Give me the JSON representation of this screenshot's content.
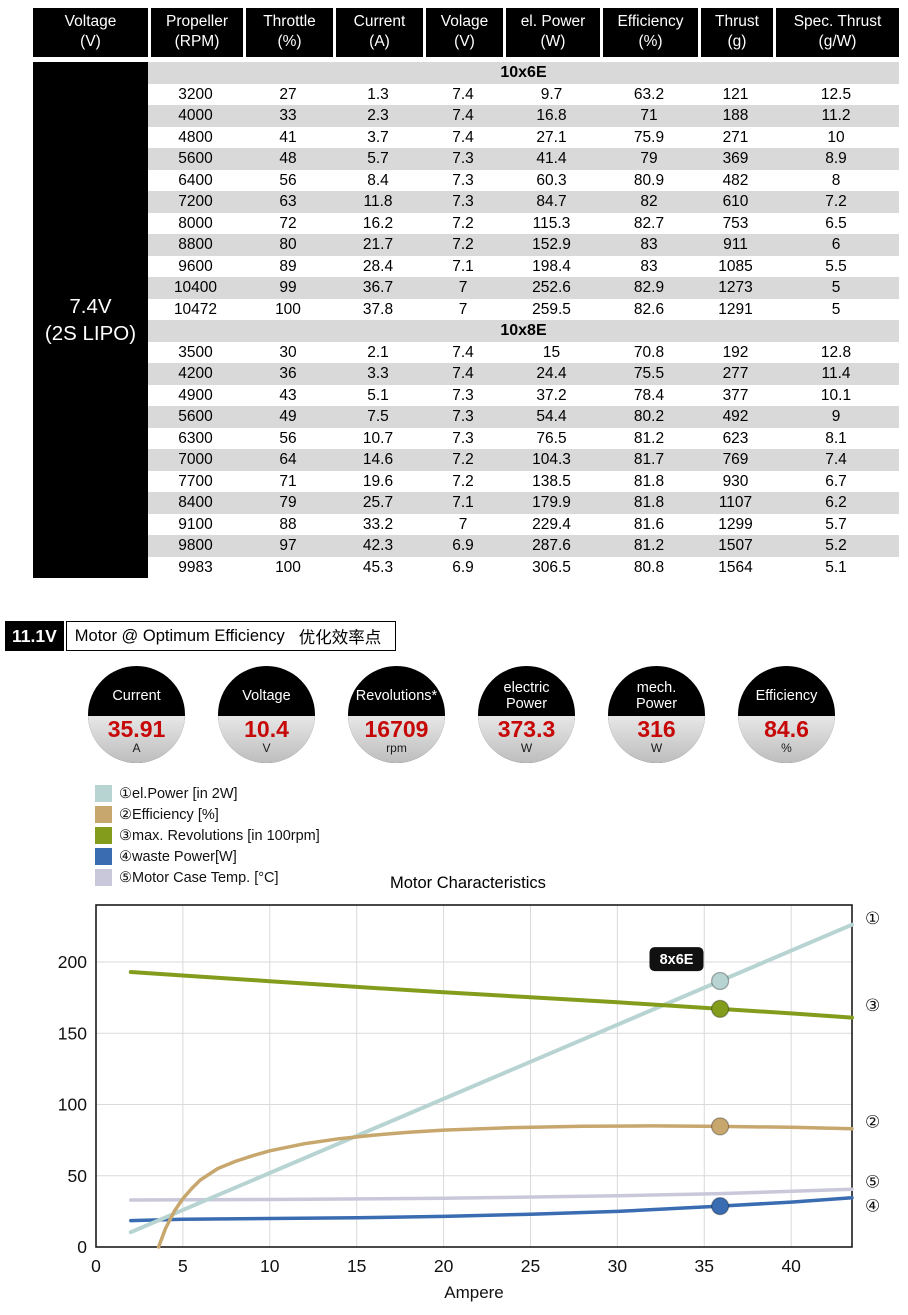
{
  "table": {
    "headers": [
      {
        "l1": "Voltage",
        "l2": "(V)"
      },
      {
        "l1": "Propeller",
        "l2": "(RPM)"
      },
      {
        "l1": "Throttle",
        "l2": "(%)"
      },
      {
        "l1": "Current",
        "l2": "(A)"
      },
      {
        "l1": "Volage",
        "l2": "(V)"
      },
      {
        "l1": "el. Power",
        "l2": "(W)"
      },
      {
        "l1": "Efficiency",
        "l2": "(%)"
      },
      {
        "l1": "Thrust",
        "l2": "(g)"
      },
      {
        "l1": "Spec. Thrust",
        "l2": "(g/W)"
      }
    ],
    "voltage_label": {
      "l1": "7.4V",
      "l2": "(2S LIPO)"
    },
    "sections": [
      {
        "name": "10x6E",
        "rows": [
          [
            "3200",
            "27",
            "1.3",
            "7.4",
            "9.7",
            "63.2",
            "121",
            "12.5"
          ],
          [
            "4000",
            "33",
            "2.3",
            "7.4",
            "16.8",
            "71",
            "188",
            "11.2"
          ],
          [
            "4800",
            "41",
            "3.7",
            "7.4",
            "27.1",
            "75.9",
            "271",
            "10"
          ],
          [
            "5600",
            "48",
            "5.7",
            "7.3",
            "41.4",
            "79",
            "369",
            "8.9"
          ],
          [
            "6400",
            "56",
            "8.4",
            "7.3",
            "60.3",
            "80.9",
            "482",
            "8"
          ],
          [
            "7200",
            "63",
            "11.8",
            "7.3",
            "84.7",
            "82",
            "610",
            "7.2"
          ],
          [
            "8000",
            "72",
            "16.2",
            "7.2",
            "115.3",
            "82.7",
            "753",
            "6.5"
          ],
          [
            "8800",
            "80",
            "21.7",
            "7.2",
            "152.9",
            "83",
            "911",
            "6"
          ],
          [
            "9600",
            "89",
            "28.4",
            "7.1",
            "198.4",
            "83",
            "1085",
            "5.5"
          ],
          [
            "10400",
            "99",
            "36.7",
            "7",
            "252.6",
            "82.9",
            "1273",
            "5"
          ],
          [
            "10472",
            "100",
            "37.8",
            "7",
            "259.5",
            "82.6",
            "1291",
            "5"
          ]
        ]
      },
      {
        "name": "10x8E",
        "rows": [
          [
            "3500",
            "30",
            "2.1",
            "7.4",
            "15",
            "70.8",
            "192",
            "12.8"
          ],
          [
            "4200",
            "36",
            "3.3",
            "7.4",
            "24.4",
            "75.5",
            "277",
            "11.4"
          ],
          [
            "4900",
            "43",
            "5.1",
            "7.3",
            "37.2",
            "78.4",
            "377",
            "10.1"
          ],
          [
            "5600",
            "49",
            "7.5",
            "7.3",
            "54.4",
            "80.2",
            "492",
            "9"
          ],
          [
            "6300",
            "56",
            "10.7",
            "7.3",
            "76.5",
            "81.2",
            "623",
            "8.1"
          ],
          [
            "7000",
            "64",
            "14.6",
            "7.2",
            "104.3",
            "81.7",
            "769",
            "7.4"
          ],
          [
            "7700",
            "71",
            "19.6",
            "7.2",
            "138.5",
            "81.8",
            "930",
            "6.7"
          ],
          [
            "8400",
            "79",
            "25.7",
            "7.1",
            "179.9",
            "81.8",
            "1107",
            "6.2"
          ],
          [
            "9100",
            "88",
            "33.2",
            "7",
            "229.4",
            "81.6",
            "1299",
            "5.7"
          ],
          [
            "9800",
            "97",
            "42.3",
            "6.9",
            "287.6",
            "81.2",
            "1507",
            "5.2"
          ],
          [
            "9983",
            "100",
            "45.3",
            "6.9",
            "306.5",
            "80.8",
            "1564",
            "5.1"
          ]
        ]
      }
    ]
  },
  "optimum": {
    "voltage_tag": "11.1V",
    "title": "Motor @ Optimum Efficiency",
    "title_cn": "优化效率点",
    "badges": [
      {
        "label": [
          "Current"
        ],
        "value": "35.91",
        "unit": "A"
      },
      {
        "label": [
          "Voltage"
        ],
        "value": "10.4",
        "unit": "V"
      },
      {
        "label": [
          "Revolutions*"
        ],
        "value": "16709",
        "unit": "rpm"
      },
      {
        "label": [
          "electric",
          "Power"
        ],
        "value": "373.3",
        "unit": "W"
      },
      {
        "label": [
          "mech.",
          "Power"
        ],
        "value": "316",
        "unit": "W"
      },
      {
        "label": [
          "Efficiency"
        ],
        "value": "84.6",
        "unit": "%"
      }
    ]
  },
  "chart_data": {
    "type": "line",
    "title": "Motor Characteristics",
    "xlabel": "Ampere",
    "xlim": [
      0,
      43.5
    ],
    "ylim": [
      0,
      240
    ],
    "xticks": [
      0,
      5,
      10,
      15,
      20,
      25,
      30,
      35,
      40
    ],
    "yticks": [
      0,
      50,
      100,
      150,
      200
    ],
    "grid": true,
    "legend_position": "top-left",
    "annotation": {
      "text": "8x6E",
      "x": 33.4,
      "y": 202
    },
    "series": [
      {
        "num": "①",
        "name": "el.Power [in 2W]",
        "color": "#b7d4d3",
        "width": 4,
        "x": [
          2,
          43.5
        ],
        "y": [
          10.4,
          226.2
        ],
        "marker": [
          35.91,
          186.7
        ],
        "label_value": 231
      },
      {
        "num": "②",
        "name": "Efficiency [%]",
        "color": "#c7a76d",
        "width": 3.5,
        "x": [
          3.6,
          4,
          4.5,
          5,
          5.5,
          6,
          7,
          8,
          9,
          10,
          12,
          14,
          16,
          18,
          20,
          24,
          28,
          32,
          35.91,
          40,
          43.5
        ],
        "y": [
          0,
          13,
          25,
          34,
          41,
          47,
          55,
          60,
          64,
          67.5,
          72.5,
          76,
          78.5,
          80.5,
          82,
          83.8,
          84.7,
          85,
          84.6,
          84,
          83
        ],
        "marker": [
          35.91,
          84.6
        ],
        "label_value": 88
      },
      {
        "num": "③",
        "name": "max. Revolutions [in 100rpm]",
        "color": "#839c1c",
        "width": 4,
        "x": [
          2,
          5,
          10,
          15,
          20,
          25,
          30,
          35.91,
          40,
          43.5
        ],
        "y": [
          193,
          190.5,
          186.5,
          182.5,
          178.8,
          175.2,
          171.7,
          167.1,
          163.9,
          161
        ],
        "marker": [
          35.91,
          167.1
        ],
        "label_value": 170
      },
      {
        "num": "④",
        "name": "waste Power[W]",
        "color": "#3a6cb1",
        "width": 3.5,
        "x": [
          2,
          5,
          10,
          15,
          20,
          25,
          30,
          35.91,
          40,
          43.5
        ],
        "y": [
          18.5,
          19.5,
          20,
          20.5,
          21.5,
          23,
          25,
          28.7,
          31.5,
          34.5
        ],
        "marker": [
          35.91,
          28.7
        ],
        "label_value": 29
      },
      {
        "num": "⑤",
        "name": "Motor Case Temp. [°C]",
        "color": "#c8c8da",
        "width": 3.5,
        "x": [
          2,
          10,
          20,
          30,
          35.91,
          43.5
        ],
        "y": [
          33,
          33.3,
          34.2,
          36,
          37.5,
          40.5
        ],
        "label_value": 46
      }
    ]
  }
}
